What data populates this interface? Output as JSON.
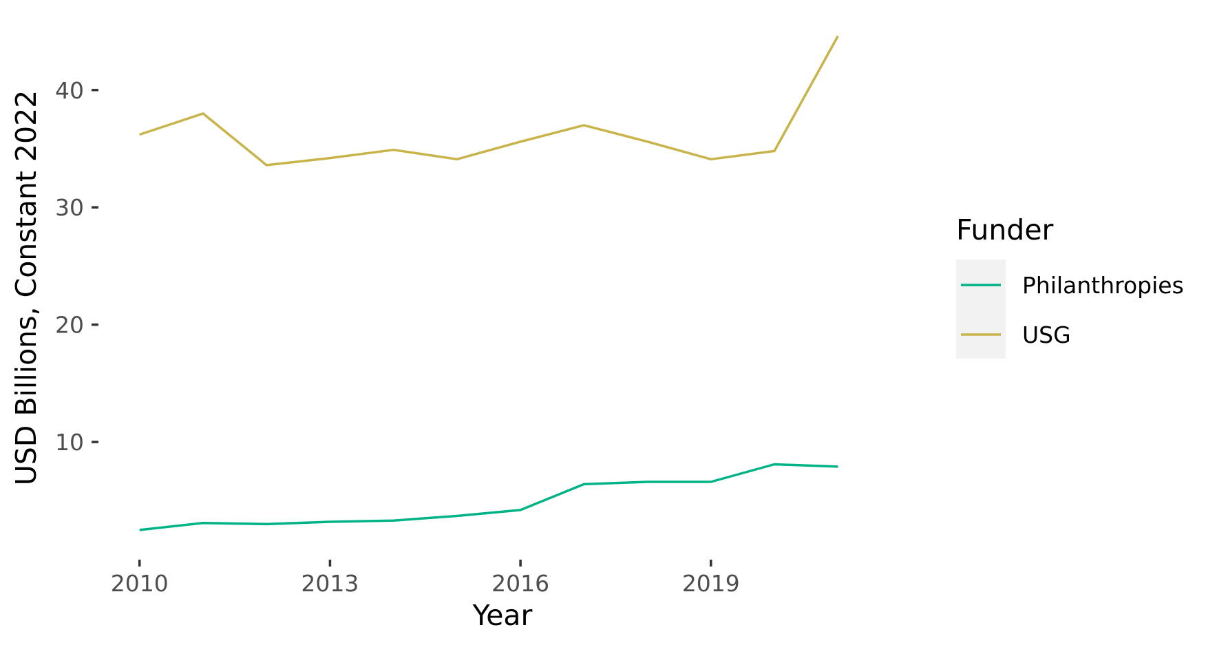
{
  "chart_data": {
    "type": "line",
    "xlabel": "Year",
    "ylabel": "USD Billions, Constant 2022",
    "x": [
      2010,
      2011,
      2012,
      2013,
      2014,
      2015,
      2016,
      2017,
      2018,
      2019,
      2020,
      2021
    ],
    "x_ticks": [
      2010,
      2013,
      2016,
      2019
    ],
    "y_ticks": [
      10,
      20,
      30,
      40
    ],
    "xlim": [
      2009.45,
      2021.55
    ],
    "ylim": [
      0.5,
      46.5
    ],
    "grid": false,
    "legend": {
      "title": "Funder",
      "position": "right"
    },
    "series": [
      {
        "name": "Philanthropies",
        "color": "#00b386",
        "values": [
          2.5,
          3.1,
          3.0,
          3.2,
          3.3,
          3.7,
          4.2,
          6.4,
          6.6,
          6.6,
          8.1,
          7.9
        ]
      },
      {
        "name": "USG",
        "color": "#c8b44a",
        "values": [
          36.2,
          38.0,
          33.6,
          34.2,
          34.9,
          34.1,
          35.6,
          37.0,
          35.6,
          34.1,
          34.8,
          44.6
        ]
      }
    ]
  }
}
